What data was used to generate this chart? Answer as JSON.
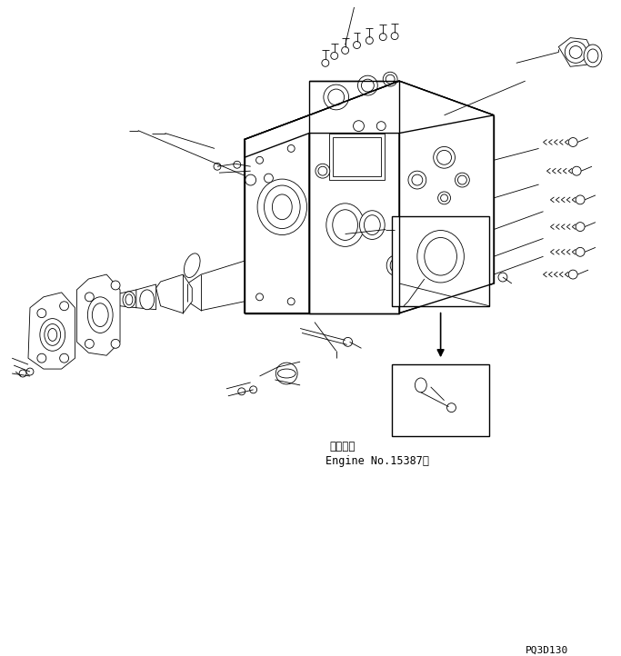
{
  "bg_color": "#ffffff",
  "line_color": "#000000",
  "text_color": "#000000",
  "figsize": [
    6.83,
    7.22
  ],
  "dpi": 100,
  "label_line1": "適用号機",
  "label_line2": "Engine No.15387～",
  "watermark": "PQ3D130",
  "lw_main": 1.0,
  "lw_thin": 0.6
}
